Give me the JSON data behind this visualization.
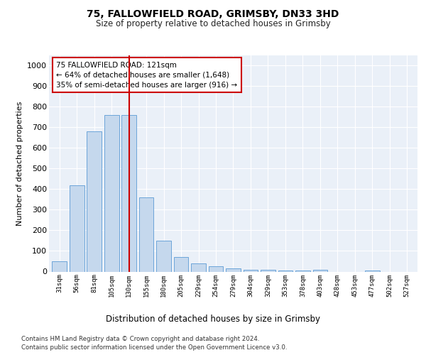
{
  "title_line1": "75, FALLOWFIELD ROAD, GRIMSBY, DN33 3HD",
  "title_line2": "Size of property relative to detached houses in Grimsby",
  "xlabel": "Distribution of detached houses by size in Grimsby",
  "ylabel": "Number of detached properties",
  "footer_line1": "Contains HM Land Registry data © Crown copyright and database right 2024.",
  "footer_line2": "Contains public sector information licensed under the Open Government Licence v3.0.",
  "annotation_line1": "75 FALLOWFIELD ROAD: 121sqm",
  "annotation_line2": "← 64% of detached houses are smaller (1,648)",
  "annotation_line3": "35% of semi-detached houses are larger (916) →",
  "bar_labels": [
    "31sqm",
    "56sqm",
    "81sqm",
    "105sqm",
    "130sqm",
    "155sqm",
    "180sqm",
    "205sqm",
    "229sqm",
    "254sqm",
    "279sqm",
    "304sqm",
    "329sqm",
    "353sqm",
    "378sqm",
    "403sqm",
    "428sqm",
    "453sqm",
    "477sqm",
    "502sqm",
    "527sqm"
  ],
  "bar_values": [
    50,
    420,
    680,
    760,
    760,
    360,
    150,
    70,
    40,
    25,
    15,
    10,
    10,
    5,
    5,
    10,
    0,
    0,
    5,
    0,
    0
  ],
  "bar_color": "#c5d8ed",
  "bar_edge_color": "#5b9bd5",
  "vline_x": 4.0,
  "vline_color": "#cc0000",
  "background_color": "#eaf0f8",
  "grid_color": "#ffffff",
  "fig_background": "#ffffff",
  "ylim": [
    0,
    1050
  ],
  "yticks": [
    0,
    100,
    200,
    300,
    400,
    500,
    600,
    700,
    800,
    900,
    1000
  ],
  "annotation_box_facecolor": "#ffffff",
  "annotation_box_edgecolor": "#cc0000"
}
